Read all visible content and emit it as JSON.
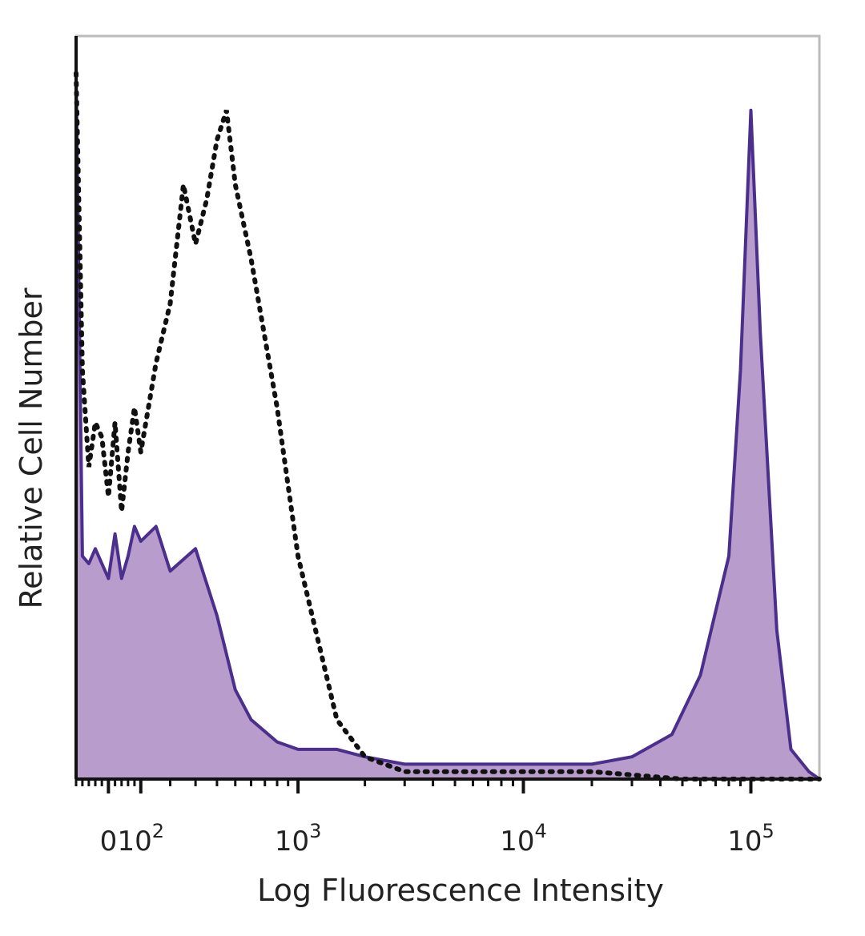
{
  "chart_data": {
    "type": "area",
    "title": "",
    "xlabel": "Log Fluorescence Intensity",
    "ylabel": "Relative Cell Number",
    "x_scale": "biexponential (log fluorescence)",
    "xlim": [
      -100,
      200000
    ],
    "ylim": [
      0,
      100
    ],
    "x_ticks": [
      {
        "value": 0,
        "label": "0"
      },
      {
        "value": 100,
        "label": "10",
        "exp": "2"
      },
      {
        "value": 1000,
        "label": "10",
        "exp": "3"
      },
      {
        "value": 10000,
        "label": "10",
        "exp": "4"
      },
      {
        "value": 100000,
        "label": "10",
        "exp": "5"
      }
    ],
    "grid": false,
    "colors": {
      "stained_line": "#4b2f8c",
      "stained_fill": "#b89ccc",
      "control_line": "#111111",
      "axis": "#111111",
      "frame": "#bbbbbb"
    },
    "series": [
      {
        "style": "filled-solid",
        "x": [
          -100,
          -80,
          -60,
          -40,
          -20,
          0,
          20,
          40,
          60,
          80,
          100,
          150,
          200,
          300,
          400,
          500,
          600,
          800,
          1000,
          1500,
          2000,
          3000,
          5000,
          8000,
          12000,
          20000,
          30000,
          45000,
          60000,
          80000,
          90000,
          100000,
          110000,
          130000,
          150000,
          180000,
          200000
        ],
        "y": [
          95,
          30,
          29,
          31,
          29,
          27,
          33,
          27,
          30,
          34,
          32,
          34,
          28,
          31,
          22,
          12,
          8,
          5,
          4,
          4,
          3,
          2,
          2,
          2,
          2,
          2,
          3,
          6,
          14,
          30,
          55,
          90,
          60,
          20,
          4,
          1,
          0
        ]
      },
      {
        "style": "dotted",
        "x": [
          -100,
          -80,
          -60,
          -40,
          -20,
          0,
          20,
          40,
          60,
          80,
          100,
          150,
          200,
          250,
          300,
          350,
          400,
          450,
          500,
          600,
          800,
          1000,
          1500,
          2000,
          3000,
          5000,
          8000,
          12000,
          20000,
          50000,
          100000,
          200000
        ],
        "y": [
          95,
          55,
          42,
          48,
          46,
          38,
          48,
          36,
          44,
          50,
          44,
          56,
          64,
          80,
          72,
          78,
          86,
          90,
          80,
          70,
          50,
          30,
          8,
          3,
          1,
          1,
          1,
          1,
          1,
          0,
          0,
          0
        ]
      }
    ]
  }
}
